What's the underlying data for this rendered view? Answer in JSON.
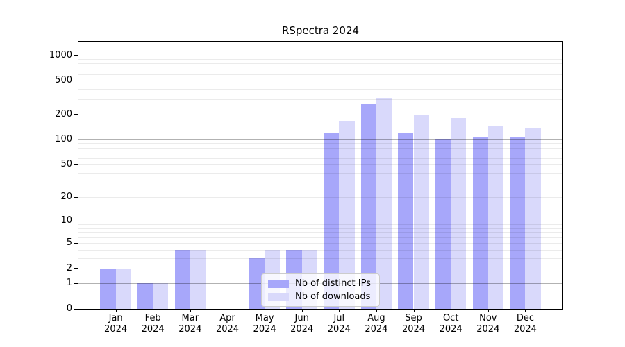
{
  "chart_data": {
    "type": "bar",
    "title": "RSpectra 2024",
    "categories": [
      "Jan 2024",
      "Feb 2024",
      "Mar 2024",
      "Apr 2024",
      "May 2024",
      "Jun 2024",
      "Jul 2024",
      "Aug 2024",
      "Sep 2024",
      "Oct 2024",
      "Nov 2024",
      "Dec 2024"
    ],
    "series": [
      {
        "name": "Nb of distinct IPs",
        "color": "#a7a7fa",
        "values": [
          2,
          1,
          4,
          0,
          3,
          4,
          120,
          266,
          122,
          100,
          105,
          105
        ]
      },
      {
        "name": "Nb of downloads",
        "color": "#d9d9fb",
        "values": [
          2,
          1,
          4,
          0,
          4,
          4,
          168,
          311,
          195,
          180,
          145,
          137
        ]
      }
    ],
    "xlabel": "",
    "ylabel": "",
    "yscale": "log1p",
    "ylim": [
      0,
      1450
    ],
    "ytick_labels": [
      "0",
      "1",
      "2",
      "5",
      "10",
      "20",
      "50",
      "100",
      "200",
      "500",
      "1000"
    ],
    "grid_major_values": [
      1,
      10,
      100,
      1000
    ],
    "grid_minor": true,
    "legend_position": "inside-bottom-center"
  }
}
